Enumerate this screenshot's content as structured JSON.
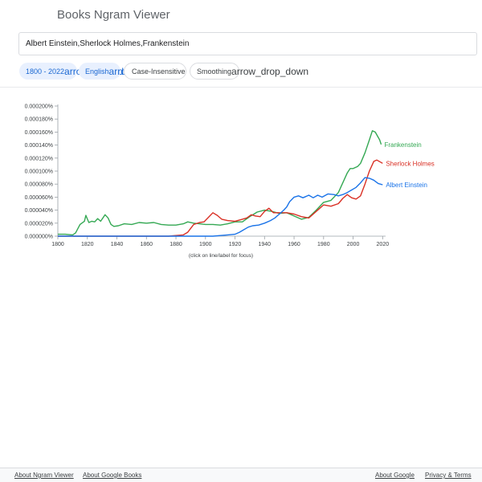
{
  "header": {
    "title": "Books Ngram Viewer"
  },
  "search": {
    "value": "Albert Einstein,Sherlock Holmes,Frankenstein"
  },
  "filters": {
    "year_range": {
      "label": "1800 - 2022",
      "icon": "arrow_drop_down"
    },
    "corpus": {
      "label": "English",
      "icon": "arrow_drop_down"
    },
    "case": {
      "label": "Case-Insensitive"
    },
    "smoothing": {
      "label": "Smoothing",
      "icon": "arrow_drop_down"
    }
  },
  "chart_note": "(click on line/label for focus)",
  "chart_data": {
    "type": "line",
    "x_ticks": [
      "1800",
      "1820",
      "1840",
      "1860",
      "1880",
      "1900",
      "1920",
      "1940",
      "1960",
      "1980",
      "2000",
      "2020"
    ],
    "y_ticks": [
      "0.000000%",
      "0.000020%",
      "0.000040%",
      "0.000060%",
      "0.000080%",
      "0.000100%",
      "0.000120%",
      "0.000140%",
      "0.000160%",
      "0.000180%",
      "0.000200%"
    ],
    "xlim": [
      1800,
      2022
    ],
    "ylim": [
      0,
      0.0002
    ],
    "series": [
      {
        "name": "Frankenstein",
        "color": "#34a853",
        "points": [
          [
            1800,
            3e-06
          ],
          [
            1805,
            3e-06
          ],
          [
            1810,
            2e-06
          ],
          [
            1812,
            5e-06
          ],
          [
            1815,
            1.8e-05
          ],
          [
            1818,
            2.3e-05
          ],
          [
            1819,
            3.2e-05
          ],
          [
            1821,
            2.1e-05
          ],
          [
            1823,
            2.3e-05
          ],
          [
            1825,
            2.2e-05
          ],
          [
            1827,
            2.7e-05
          ],
          [
            1829,
            2.3e-05
          ],
          [
            1832,
            3.3e-05
          ],
          [
            1834,
            2.8e-05
          ],
          [
            1836,
            1.8e-05
          ],
          [
            1838,
            1.5e-05
          ],
          [
            1841,
            1.6e-05
          ],
          [
            1845,
            1.9e-05
          ],
          [
            1850,
            1.8e-05
          ],
          [
            1855,
            2.1e-05
          ],
          [
            1860,
            2e-05
          ],
          [
            1865,
            2.1e-05
          ],
          [
            1870,
            1.8e-05
          ],
          [
            1875,
            1.7e-05
          ],
          [
            1880,
            1.7e-05
          ],
          [
            1885,
            1.9e-05
          ],
          [
            1888,
            2.2e-05
          ],
          [
            1892,
            2e-05
          ],
          [
            1900,
            1.8e-05
          ],
          [
            1905,
            1.8e-05
          ],
          [
            1910,
            1.7e-05
          ],
          [
            1915,
            1.9e-05
          ],
          [
            1920,
            2.2e-05
          ],
          [
            1925,
            2.2e-05
          ],
          [
            1930,
            3e-05
          ],
          [
            1935,
            3.7e-05
          ],
          [
            1940,
            4e-05
          ],
          [
            1945,
            3.8e-05
          ],
          [
            1950,
            3.5e-05
          ],
          [
            1955,
            3.6e-05
          ],
          [
            1960,
            3.1e-05
          ],
          [
            1965,
            2.6e-05
          ],
          [
            1970,
            2.9e-05
          ],
          [
            1975,
            4e-05
          ],
          [
            1980,
            5.2e-05
          ],
          [
            1985,
            5.5e-05
          ],
          [
            1990,
            6.7e-05
          ],
          [
            1993,
            8.2e-05
          ],
          [
            1996,
            9.7e-05
          ],
          [
            1998,
            0.000104
          ],
          [
            2000,
            0.000104
          ],
          [
            2003,
            0.000107
          ],
          [
            2005,
            0.000112
          ],
          [
            2008,
            0.000128
          ],
          [
            2011,
            0.000148
          ],
          [
            2013,
            0.000162
          ],
          [
            2015,
            0.00016
          ],
          [
            2018,
            0.000148
          ],
          [
            2019,
            0.000141
          ]
        ]
      },
      {
        "name": "Sherlock Holmes",
        "color": "#d93025",
        "points": [
          [
            1800,
            0.0
          ],
          [
            1860,
            0.0
          ],
          [
            1875,
            0.0
          ],
          [
            1880,
            1e-06
          ],
          [
            1885,
            2e-06
          ],
          [
            1888,
            6e-06
          ],
          [
            1892,
            1.8e-05
          ],
          [
            1896,
            2.1e-05
          ],
          [
            1899,
            2.2e-05
          ],
          [
            1902,
            2.9e-05
          ],
          [
            1905,
            3.6e-05
          ],
          [
            1908,
            3.2e-05
          ],
          [
            1911,
            2.6e-05
          ],
          [
            1915,
            2.4e-05
          ],
          [
            1920,
            2.3e-05
          ],
          [
            1925,
            2.6e-05
          ],
          [
            1928,
            2.8e-05
          ],
          [
            1931,
            3.3e-05
          ],
          [
            1934,
            3.1e-05
          ],
          [
            1937,
            3e-05
          ],
          [
            1940,
            3.8e-05
          ],
          [
            1943,
            4.3e-05
          ],
          [
            1946,
            3.6e-05
          ],
          [
            1950,
            3.6e-05
          ],
          [
            1955,
            3.6e-05
          ],
          [
            1960,
            3.4e-05
          ],
          [
            1965,
            3e-05
          ],
          [
            1970,
            2.8e-05
          ],
          [
            1975,
            3.8e-05
          ],
          [
            1980,
            4.8e-05
          ],
          [
            1985,
            4.6e-05
          ],
          [
            1990,
            5e-05
          ],
          [
            1993,
            5.8e-05
          ],
          [
            1996,
            6.4e-05
          ],
          [
            1999,
            5.9e-05
          ],
          [
            2002,
            5.7e-05
          ],
          [
            2005,
            6.2e-05
          ],
          [
            2008,
            8e-05
          ],
          [
            2011,
            0.0001
          ],
          [
            2014,
            0.000115
          ],
          [
            2016,
            0.000117
          ],
          [
            2020,
            0.000112
          ]
        ]
      },
      {
        "name": "Albert Einstein",
        "color": "#1a73e8",
        "points": [
          [
            1800,
            0.0
          ],
          [
            1900,
            0.0
          ],
          [
            1905,
            0.0
          ],
          [
            1910,
            1e-06
          ],
          [
            1915,
            2e-06
          ],
          [
            1920,
            3e-06
          ],
          [
            1923,
            6e-06
          ],
          [
            1926,
            1e-05
          ],
          [
            1929,
            1.4e-05
          ],
          [
            1932,
            1.6e-05
          ],
          [
            1936,
            1.7e-05
          ],
          [
            1940,
            2e-05
          ],
          [
            1944,
            2.4e-05
          ],
          [
            1947,
            2.8e-05
          ],
          [
            1950,
            3.4e-05
          ],
          [
            1953,
            4e-05
          ],
          [
            1955,
            4.5e-05
          ],
          [
            1957,
            5.3e-05
          ],
          [
            1960,
            6e-05
          ],
          [
            1963,
            6.2e-05
          ],
          [
            1966,
            5.9e-05
          ],
          [
            1970,
            6.3e-05
          ],
          [
            1973,
            5.9e-05
          ],
          [
            1976,
            6.3e-05
          ],
          [
            1979,
            6e-05
          ],
          [
            1983,
            6.5e-05
          ],
          [
            1987,
            6.4e-05
          ],
          [
            1990,
            6.2e-05
          ],
          [
            1993,
            6.4e-05
          ],
          [
            1996,
            6.7e-05
          ],
          [
            1999,
            7.1e-05
          ],
          [
            2002,
            7.5e-05
          ],
          [
            2005,
            8.2e-05
          ],
          [
            2008,
            9e-05
          ],
          [
            2011,
            8.9e-05
          ],
          [
            2014,
            8.6e-05
          ],
          [
            2017,
            8.1e-05
          ],
          [
            2020,
            7.9e-05
          ]
        ]
      }
    ]
  },
  "footer": {
    "about_ngram": "About Ngram Viewer",
    "about_books": "About Google Books",
    "about_google": "About Google",
    "privacy": "Privacy & Terms"
  },
  "colors": {
    "accent": "#1a73e8",
    "chip_bg": "#e8f0fe"
  }
}
